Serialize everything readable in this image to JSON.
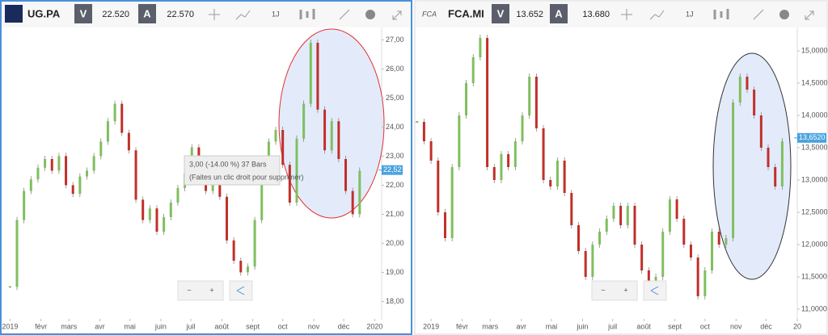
{
  "panels": [
    {
      "symbol": "UG.PA",
      "sell_label": "V",
      "sell": "22.520",
      "buy_label": "A",
      "buy": "22.570",
      "interval": "1J",
      "annotation": {
        "line1": "3,00 (-14.00 %) 37 Bars",
        "line2": "(Faites un clic droit pour supprimer)"
      },
      "zoom_out": "−",
      "zoom_in": "+",
      "chart_data": {
        "type": "candlestick",
        "x": [
          0,
          7,
          14,
          21,
          28,
          35,
          42,
          49,
          56,
          63,
          70,
          77,
          84,
          91,
          98,
          105,
          112,
          119,
          126,
          133,
          140,
          147,
          154,
          161,
          168,
          175,
          182,
          189,
          196,
          203,
          210,
          217,
          224,
          231,
          238,
          245,
          252,
          259,
          266,
          273,
          280,
          287,
          294,
          301,
          308,
          315,
          322,
          329,
          336,
          343,
          350
        ],
        "values": [
          18.5,
          20.8,
          21.8,
          22.2,
          22.6,
          22.9,
          22.5,
          23.0,
          22.0,
          21.7,
          22.3,
          22.5,
          23.0,
          23.5,
          24.2,
          24.8,
          23.8,
          23.2,
          21.5,
          20.8,
          21.2,
          20.4,
          20.9,
          21.4,
          21.9,
          22.4,
          23.3,
          22.6,
          21.8,
          22.2,
          21.6,
          20.1,
          19.4,
          19.0,
          19.2,
          20.8,
          22.4,
          23.5,
          23.9,
          22.7,
          21.4,
          23.6,
          24.8,
          26.9,
          24.6,
          23.2,
          24.2,
          22.9,
          21.8,
          21.0,
          22.5
        ],
        "up_color": "#7fbf5f",
        "down_color": "#c0302a",
        "last": {
          "value": 22.52,
          "label": "22,52"
        },
        "xlim": [
          -10,
          372
        ],
        "xticks": [
          {
            "value": 0,
            "label": "2019"
          },
          {
            "value": 31,
            "label": "févr"
          },
          {
            "value": 59,
            "label": "mars"
          },
          {
            "value": 90,
            "label": "avr"
          },
          {
            "value": 120,
            "label": "mai"
          },
          {
            "value": 151,
            "label": "juin"
          },
          {
            "value": 181,
            "label": "juil"
          },
          {
            "value": 212,
            "label": "août"
          },
          {
            "value": 243,
            "label": "sept"
          },
          {
            "value": 273,
            "label": "oct"
          },
          {
            "value": 304,
            "label": "nov"
          },
          {
            "value": 334,
            "label": "déc"
          },
          {
            "value": 365,
            "label": "2020"
          }
        ],
        "ylim": [
          17.4,
          27.4
        ],
        "yticks": [
          {
            "value": 18,
            "label": "18,00"
          },
          {
            "value": 19,
            "label": "19,00"
          },
          {
            "value": 20,
            "label": "20,00"
          },
          {
            "value": 21,
            "label": "21,00"
          },
          {
            "value": 22,
            "label": "22,00"
          },
          {
            "value": 23,
            "label": "23,00"
          },
          {
            "value": 24,
            "label": "24,00"
          },
          {
            "value": 25,
            "label": "25,00"
          },
          {
            "value": 26,
            "label": "26,00"
          },
          {
            "value": 27,
            "label": "27,00"
          }
        ]
      }
    },
    {
      "symbol": "FCA.MI",
      "logo": "FCA",
      "sell_label": "V",
      "sell": "13.652",
      "buy_label": "A",
      "buy": "13.680",
      "interval": "1J",
      "zoom_out": "−",
      "zoom_in": "+",
      "chart_data": {
        "type": "candlestick",
        "x": [
          -14,
          -7,
          0,
          7,
          14,
          21,
          28,
          35,
          42,
          49,
          56,
          63,
          70,
          77,
          84,
          91,
          98,
          105,
          112,
          119,
          126,
          133,
          140,
          147,
          154,
          161,
          168,
          175,
          182,
          189,
          196,
          203,
          210,
          217,
          224,
          231,
          238,
          245,
          252,
          259,
          266,
          273,
          280,
          287,
          294,
          301,
          308,
          315,
          322,
          329,
          336,
          343,
          350
        ],
        "values": [
          13.9,
          13.6,
          13.3,
          12.5,
          12.1,
          13.2,
          14.0,
          14.5,
          14.9,
          15.2,
          13.2,
          13.0,
          13.4,
          13.2,
          13.6,
          14.0,
          14.6,
          13.8,
          13.0,
          12.9,
          13.3,
          12.8,
          12.3,
          11.9,
          11.5,
          12.0,
          12.2,
          12.4,
          12.6,
          12.3,
          12.6,
          12.0,
          11.6,
          11.2,
          11.5,
          12.2,
          12.7,
          12.4,
          12.0,
          11.8,
          11.2,
          11.6,
          12.2,
          12.0,
          12.1,
          14.2,
          14.6,
          14.4,
          14.0,
          13.5,
          13.2,
          12.9,
          13.6
        ],
        "up_color": "#7fbf5f",
        "down_color": "#c0302a",
        "last": {
          "value": 13.652,
          "label": "13,6520"
        },
        "xlim": [
          -17,
          365
        ],
        "xticks": [
          {
            "value": 0,
            "label": "2019"
          },
          {
            "value": 31,
            "label": "févr"
          },
          {
            "value": 59,
            "label": "mars"
          },
          {
            "value": 90,
            "label": "avr"
          },
          {
            "value": 120,
            "label": "mai"
          },
          {
            "value": 151,
            "label": "juin"
          },
          {
            "value": 181,
            "label": "juil"
          },
          {
            "value": 212,
            "label": "août"
          },
          {
            "value": 243,
            "label": "sept"
          },
          {
            "value": 273,
            "label": "oct"
          },
          {
            "value": 304,
            "label": "nov"
          },
          {
            "value": 334,
            "label": "déc"
          },
          {
            "value": 365,
            "label": "20"
          }
        ],
        "ylim": [
          10.85,
          15.35
        ],
        "yticks": [
          {
            "value": 11,
            "label": "11,0000"
          },
          {
            "value": 11.5,
            "label": "11,5000"
          },
          {
            "value": 12,
            "label": "12,0000"
          },
          {
            "value": 12.5,
            "label": "12,5000"
          },
          {
            "value": 13,
            "label": "13,0000"
          },
          {
            "value": 13.5,
            "label": "13,5000"
          },
          {
            "value": 14,
            "label": "14,0000"
          },
          {
            "value": 14.5,
            "label": "14,5000"
          },
          {
            "value": 15,
            "label": "15,0000"
          }
        ]
      }
    }
  ]
}
